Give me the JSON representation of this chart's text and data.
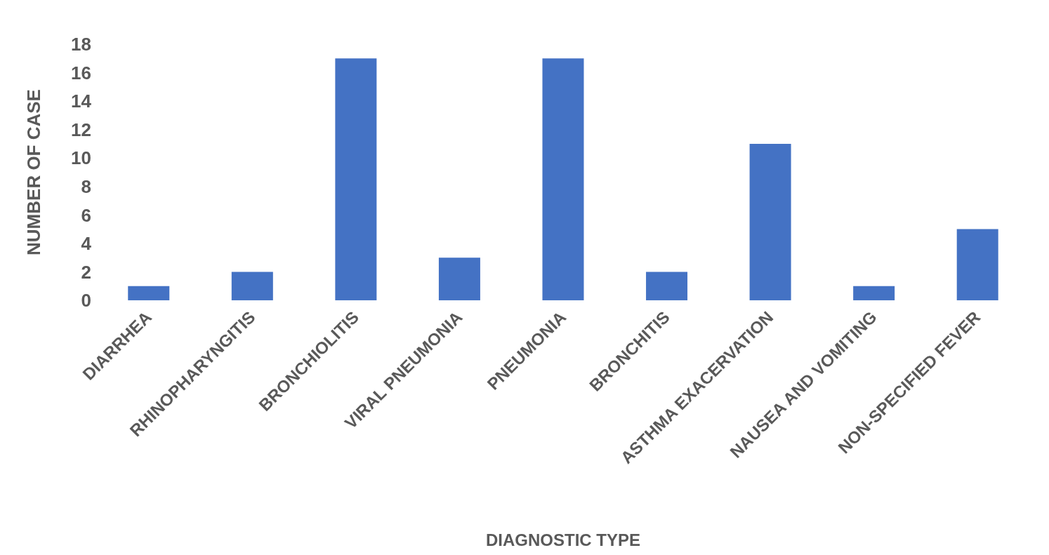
{
  "chart_data": {
    "type": "bar",
    "xlabel": "DIAGNOSTIC TYPE",
    "ylabel": "NUMBER OF CASE",
    "categories": [
      "DIARRHEA",
      "RHINOPHARYNGITIS",
      "BRONCHIOLITIS",
      "VIRAL PNEUMONIA",
      "PNEUMONIA",
      "BRONCHITIS",
      "ASTHMA EXACERVATION",
      "NAUSEA AND VOMITING",
      "NON-SPECIFIED FEVER"
    ],
    "values": [
      1,
      2,
      17,
      3,
      17,
      2,
      11,
      1,
      5
    ],
    "color": "#4472c4",
    "ylim": [
      0,
      18
    ],
    "yticks": [
      0,
      2,
      4,
      6,
      8,
      10,
      12,
      14,
      16,
      18
    ],
    "grid": false,
    "legend": false
  }
}
